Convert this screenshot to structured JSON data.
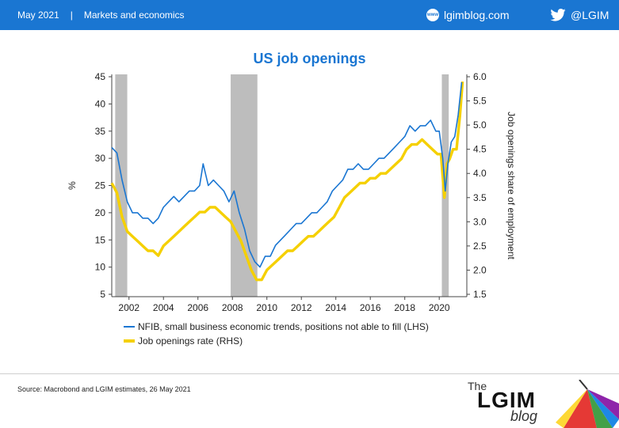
{
  "header": {
    "date": "May 2021",
    "separator": "|",
    "section": "Markets and economics",
    "site_icon_text": "www",
    "site": "lgimblog.com",
    "twitter": "@LGIM"
  },
  "footer": {
    "source": "Source: Macrobond and LGIM estimates, 26 May 2021",
    "logo": {
      "the": "The",
      "lgim": "LGIM",
      "blog": "blog"
    }
  },
  "colors": {
    "brand": "#1a76d2",
    "nfib": "#1a76d2",
    "jolts": "#f5d000",
    "recession": "#bdbdbd"
  },
  "chart_data": {
    "type": "line",
    "title": "US job openings",
    "ylabel_left": "%",
    "ylabel_right": "Job openings share of employment",
    "x_ticks": [
      "2002",
      "2004",
      "2006",
      "2008",
      "2010",
      "2012",
      "2014",
      "2016",
      "2018",
      "2020"
    ],
    "xlim": [
      2001.0,
      2021.6
    ],
    "ylim_left": [
      5,
      45
    ],
    "ylim_right": [
      1.5,
      6.0
    ],
    "left_ticks": [
      "45",
      "40",
      "35",
      "30",
      "25",
      "20",
      "15",
      "10",
      "5"
    ],
    "right_ticks": [
      "6.0",
      "5.5",
      "5.0",
      "4.5",
      "4.0",
      "3.5",
      "3.0",
      "2.5",
      "2.0",
      "1.5"
    ],
    "recessions": [
      [
        2001.2,
        2001.9
      ],
      [
        2007.9,
        2009.45
      ],
      [
        2020.15,
        2020.55
      ]
    ],
    "legend": "bottom",
    "series": [
      {
        "name": "NFIB, small business economic trends, positions not able to fill (LHS)",
        "axis": "left",
        "x": [
          2001.0,
          2001.3,
          2001.6,
          2001.9,
          2002.2,
          2002.5,
          2002.8,
          2003.1,
          2003.4,
          2003.7,
          2004.0,
          2004.3,
          2004.6,
          2004.9,
          2005.2,
          2005.5,
          2005.8,
          2006.1,
          2006.3,
          2006.6,
          2006.9,
          2007.2,
          2007.5,
          2007.8,
          2008.1,
          2008.4,
          2008.7,
          2009.0,
          2009.3,
          2009.6,
          2009.9,
          2010.2,
          2010.5,
          2010.8,
          2011.1,
          2011.4,
          2011.7,
          2012.0,
          2012.3,
          2012.6,
          2012.9,
          2013.2,
          2013.5,
          2013.8,
          2014.1,
          2014.4,
          2014.7,
          2015.0,
          2015.3,
          2015.6,
          2015.9,
          2016.2,
          2016.5,
          2016.8,
          2017.1,
          2017.4,
          2017.7,
          2018.0,
          2018.3,
          2018.6,
          2018.9,
          2019.2,
          2019.5,
          2019.8,
          2020.0,
          2020.2,
          2020.35,
          2020.5,
          2020.7,
          2020.9,
          2021.1,
          2021.3
        ],
        "values": [
          32,
          31,
          26,
          22,
          20,
          20,
          19,
          19,
          18,
          19,
          21,
          22,
          23,
          22,
          23,
          24,
          24,
          25,
          29,
          25,
          26,
          25,
          24,
          22,
          24,
          20,
          17,
          13,
          11,
          10,
          12,
          12,
          14,
          15,
          16,
          17,
          18,
          18,
          19,
          20,
          20,
          21,
          22,
          24,
          25,
          26,
          28,
          28,
          29,
          28,
          28,
          29,
          30,
          30,
          31,
          32,
          33,
          34,
          36,
          35,
          36,
          36,
          37,
          35,
          35,
          30,
          24,
          29,
          33,
          34,
          38,
          44
        ]
      },
      {
        "name": "Job openings rate (RHS)",
        "axis": "right",
        "x": [
          2001.0,
          2001.3,
          2001.6,
          2001.9,
          2002.2,
          2002.5,
          2002.8,
          2003.1,
          2003.4,
          2003.7,
          2004.0,
          2004.3,
          2004.6,
          2004.9,
          2005.2,
          2005.5,
          2005.8,
          2006.1,
          2006.4,
          2006.7,
          2007.0,
          2007.3,
          2007.6,
          2007.9,
          2008.2,
          2008.5,
          2008.8,
          2009.1,
          2009.4,
          2009.7,
          2010.0,
          2010.3,
          2010.6,
          2010.9,
          2011.2,
          2011.5,
          2011.8,
          2012.1,
          2012.4,
          2012.7,
          2013.0,
          2013.3,
          2013.6,
          2013.9,
          2014.2,
          2014.5,
          2014.8,
          2015.1,
          2015.4,
          2015.7,
          2016.0,
          2016.3,
          2016.6,
          2016.9,
          2017.2,
          2017.5,
          2017.8,
          2018.1,
          2018.4,
          2018.7,
          2019.0,
          2019.3,
          2019.6,
          2019.9,
          2020.1,
          2020.3,
          2020.45,
          2020.6,
          2020.8,
          2021.0,
          2021.2,
          2021.35
        ],
        "values": [
          3.8,
          3.6,
          3.1,
          2.8,
          2.7,
          2.6,
          2.5,
          2.4,
          2.4,
          2.3,
          2.5,
          2.6,
          2.7,
          2.8,
          2.9,
          3.0,
          3.1,
          3.2,
          3.2,
          3.3,
          3.3,
          3.2,
          3.1,
          3.0,
          2.8,
          2.6,
          2.3,
          2.0,
          1.8,
          1.8,
          2.0,
          2.1,
          2.2,
          2.3,
          2.4,
          2.4,
          2.5,
          2.6,
          2.7,
          2.7,
          2.8,
          2.9,
          3.0,
          3.1,
          3.3,
          3.5,
          3.6,
          3.7,
          3.8,
          3.8,
          3.9,
          3.9,
          4.0,
          4.0,
          4.1,
          4.2,
          4.3,
          4.5,
          4.6,
          4.6,
          4.7,
          4.6,
          4.5,
          4.4,
          4.4,
          3.5,
          4.2,
          4.3,
          4.5,
          4.5,
          5.2,
          5.9
        ]
      }
    ]
  }
}
